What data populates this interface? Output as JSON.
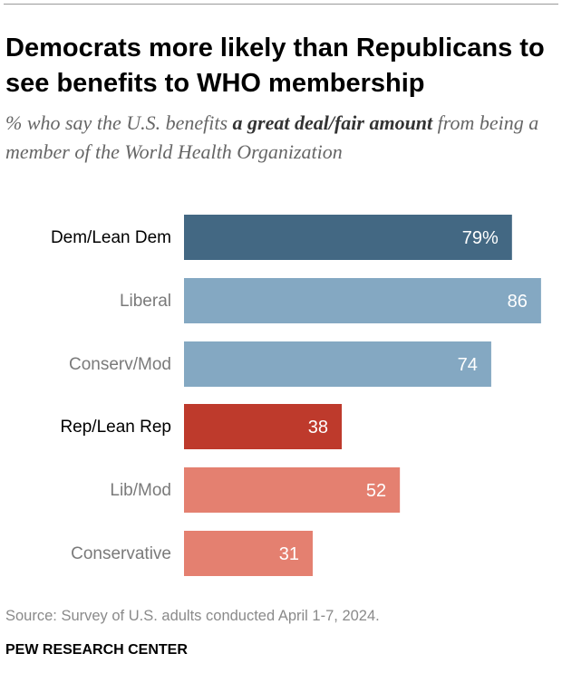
{
  "title": "Democrats more likely than Republicans to see benefits to WHO membership",
  "subtitle": {
    "lead": "% who say the U.S. benefits ",
    "bold": "a great deal/fair amount",
    "tail": " from being a member of the World Health Organization"
  },
  "source": "Source: Survey of U.S. adults conducted April 1-7, 2024.",
  "brand": "PEW RESEARCH CENTER",
  "chart_data": {
    "type": "bar",
    "orientation": "horizontal",
    "title": "Democrats more likely than Republicans to see benefits to WHO membership",
    "xlabel": "",
    "ylabel": "",
    "xlim": [
      0,
      100
    ],
    "grid": false,
    "categories": [
      "Dem/Lean Dem",
      "Liberal",
      "Conserv/Mod",
      "Rep/Lean Rep",
      "Lib/Mod",
      "Conservative"
    ],
    "values": [
      79,
      86,
      74,
      38,
      52,
      31
    ],
    "labels": [
      "79%",
      "86",
      "74",
      "38",
      "52",
      "31"
    ],
    "colors": [
      "#436883",
      "#84a8c2",
      "#84a8c2",
      "#be3a2c",
      "#e48070",
      "#e48070"
    ],
    "label_colors": [
      "#000000",
      "#7a7a7a",
      "#7a7a7a",
      "#000000",
      "#7a7a7a",
      "#7a7a7a"
    ]
  }
}
